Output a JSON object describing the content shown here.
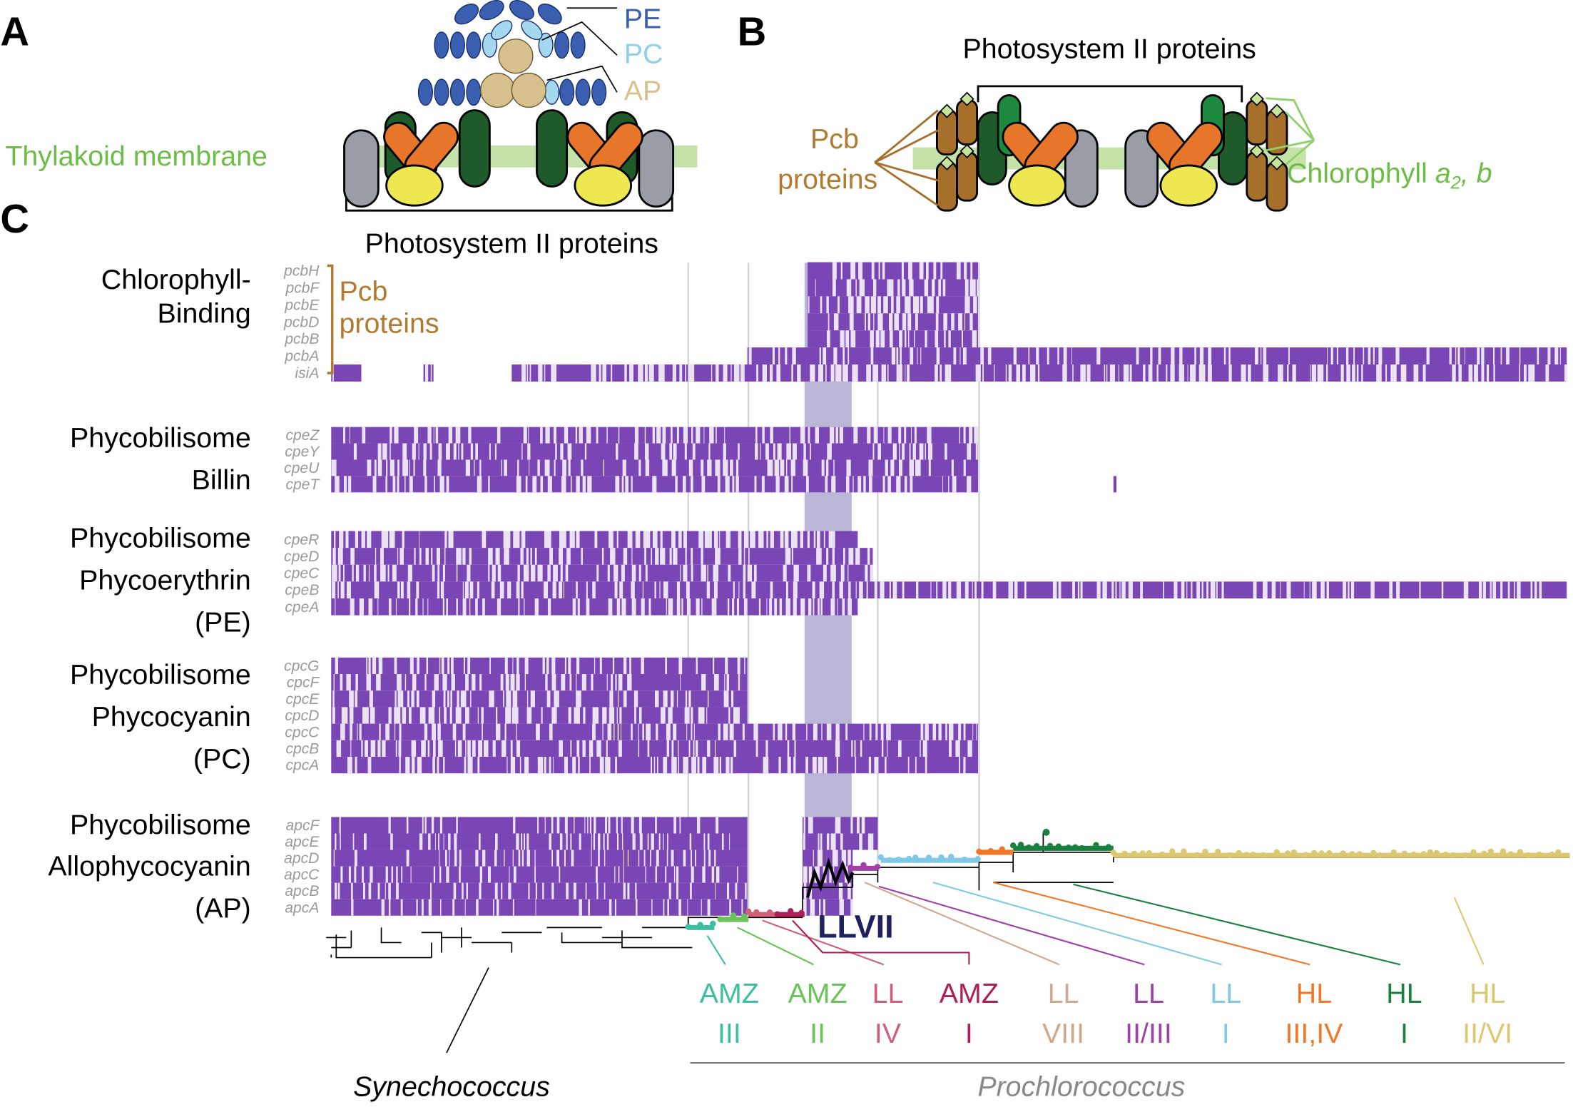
{
  "panel_a": {
    "label": "A",
    "pe": "PE",
    "pc": "PC",
    "ap": "AP",
    "membrane": "Thylakoid membrane",
    "bracket_label": "Photosystem II proteins"
  },
  "panel_b": {
    "label": "B",
    "title": "Photosystem II proteins",
    "pcb": [
      "Pcb",
      "proteins"
    ],
    "chlorophyll": "Chlorophyll ",
    "chlorophyll_a": "a",
    "chlorophyll_sub": "2",
    "chlorophyll_b": ", b"
  },
  "panel_c": {
    "label": "C",
    "pcb_bracket": [
      "Pcb",
      "proteins"
    ],
    "gene_groups": [
      {
        "name": [
          "Chlorophyll-",
          "Binding"
        ],
        "genes": [
          "pcbH",
          "pcbF",
          "pcbE",
          "pcbD",
          "pcbB",
          "pcbA",
          "isiA"
        ]
      },
      {
        "name": [
          "Phycobilisome",
          "Billin"
        ],
        "genes": [
          "cpeZ",
          "cpeY",
          "cpeU",
          "cpeT"
        ]
      },
      {
        "name": [
          "Phycobilisome",
          "Phycoerythrin",
          "(PE)"
        ],
        "genes": [
          "cpeR",
          "cpeD",
          "cpeC",
          "cpeB",
          "cpeA"
        ]
      },
      {
        "name": [
          "Phycobilisome",
          "Phycocyanin",
          "(PC)"
        ],
        "genes": [
          "cpcG",
          "cpcF",
          "cpcE",
          "cpcD",
          "cpcC",
          "cpcB",
          "cpcA"
        ]
      },
      {
        "name": [
          "Phycobilisome",
          "Allophycocyanin",
          "(AP)"
        ],
        "genes": [
          "apcF",
          "apcE",
          "apcD",
          "apcC",
          "apcB",
          "apcA"
        ]
      }
    ],
    "highlight": "LLVII",
    "clades": [
      [
        "AMZ",
        "III"
      ],
      [
        "AMZ",
        "II"
      ],
      [
        "LL",
        "IV"
      ],
      [
        "AMZ",
        "I"
      ],
      [
        "LL",
        "VIII"
      ],
      [
        "LL",
        "II/III"
      ],
      [
        "LL",
        "I"
      ],
      [
        "HL",
        "III,IV"
      ],
      [
        "HL",
        "I"
      ],
      [
        "HL",
        "II/VI"
      ]
    ],
    "genus": [
      "Synechococcus",
      "Prochlorococcus"
    ]
  }
}
